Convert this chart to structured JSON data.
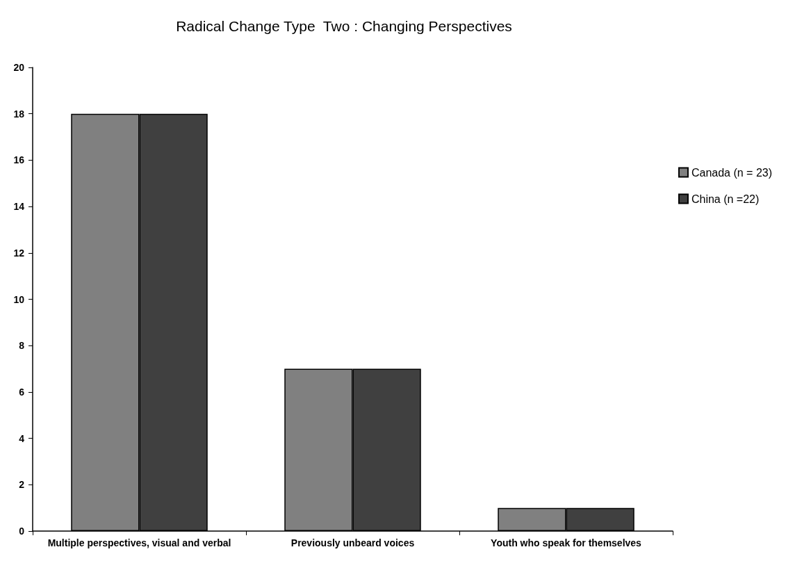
{
  "chart_data": {
    "type": "bar",
    "title": "Radical Change Type  Two : Changing Perspectives",
    "categories": [
      "Multiple perspectives, visual and verbal",
      "Previously unbeard voices",
      "Youth who speak for themselves"
    ],
    "series": [
      {
        "name": "Canada (n = 23)",
        "color": "#808080",
        "values": [
          18,
          7,
          1
        ]
      },
      {
        "name": "China (n =22)",
        "color": "#404040",
        "values": [
          18,
          7,
          1
        ]
      }
    ],
    "ylim": [
      0,
      20
    ],
    "yticks": [
      0,
      2,
      4,
      6,
      8,
      10,
      12,
      14,
      16,
      18,
      20
    ],
    "grid": false,
    "legend": "right"
  }
}
